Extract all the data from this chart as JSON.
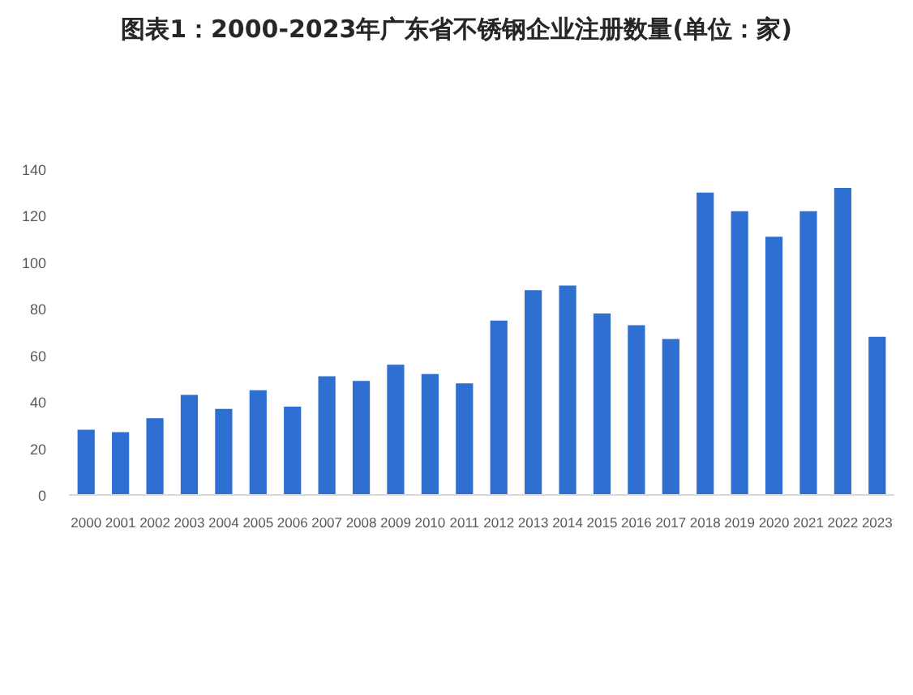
{
  "chart_data": {
    "type": "bar",
    "title": "图表1：2000-2023年广东省不锈钢企业注册数量(单位：家)",
    "categories": [
      "2000",
      "2001",
      "2002",
      "2003",
      "2004",
      "2005",
      "2006",
      "2007",
      "2008",
      "2009",
      "2010",
      "2011",
      "2012",
      "2013",
      "2014",
      "2015",
      "2016",
      "2017",
      "2018",
      "2019",
      "2020",
      "2021",
      "2022",
      "2023"
    ],
    "values": [
      28,
      27,
      33,
      43,
      37,
      45,
      38,
      51,
      49,
      56,
      52,
      48,
      75,
      88,
      90,
      78,
      73,
      67,
      130,
      122,
      111,
      122,
      132,
      68
    ],
    "color": "#2e6fd1",
    "ylim": [
      0,
      140
    ],
    "yticks": [
      0,
      20,
      40,
      60,
      80,
      100,
      120,
      140
    ]
  }
}
